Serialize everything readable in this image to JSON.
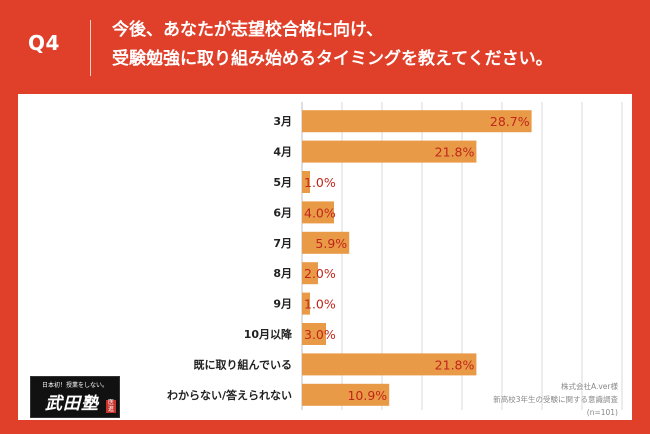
{
  "header": {
    "question_label": "Q4",
    "question_line1": "今後、あなたが志望校合格に向け、",
    "question_line2": "受験勉強に取り組み始めるタイミングを教えてください。"
  },
  "colors": {
    "background": "#e0402a",
    "bar": "#e99a47",
    "value_label": "#c0261b",
    "grid": "#d9d9d9"
  },
  "chart_data": {
    "type": "bar",
    "orientation": "horizontal",
    "categories": [
      "3月",
      "4月",
      "5月",
      "6月",
      "7月",
      "8月",
      "9月",
      "10月以降",
      "既に取り組んでいる",
      "わからない/答えられない"
    ],
    "values": [
      28.7,
      21.8,
      1.0,
      4.0,
      5.9,
      2.0,
      1.0,
      3.0,
      21.8,
      10.9
    ],
    "value_labels": [
      "28.7%",
      "21.8%",
      "1.0%",
      "4.0%",
      "5.9%",
      "2.0%",
      "1.0%",
      "3.0%",
      "21.8%",
      "10.9%"
    ],
    "unit": "%",
    "xlim": [
      0,
      40
    ],
    "gridlines": true,
    "title": "",
    "xlabel": "",
    "ylabel": ""
  },
  "brand": {
    "tagline": "日本初！授業をしない。",
    "name": "武田塾",
    "seal": "医進"
  },
  "source": {
    "company": "株式会社A.ver様",
    "survey": "新高校3年生の受験に関する意識調査",
    "sample": "(n=101)"
  }
}
